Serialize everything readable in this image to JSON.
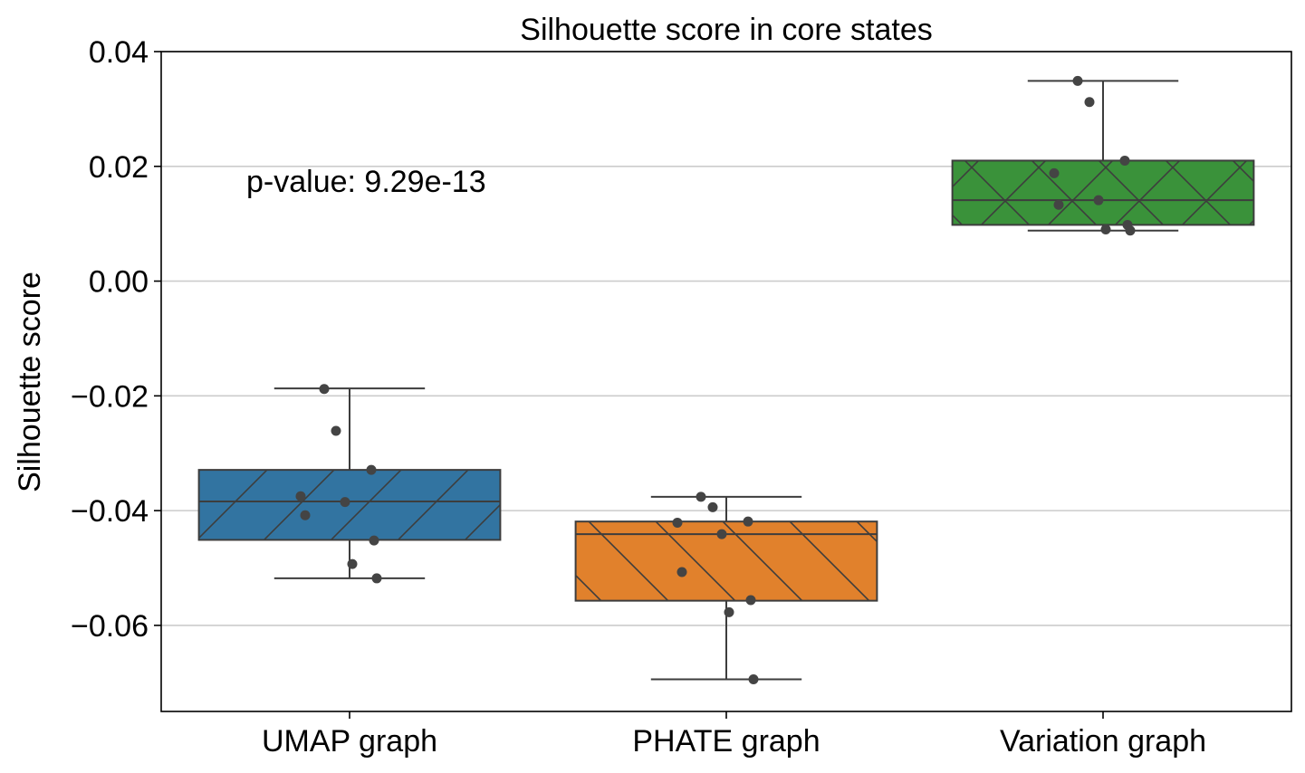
{
  "chart_data": {
    "type": "box",
    "title": "Silhouette score in core states",
    "xlabel": "",
    "ylabel": "Silhouette score",
    "ylim": [
      -0.075,
      0.04
    ],
    "yticks": [
      0.04,
      0.02,
      0.0,
      -0.02,
      -0.04,
      -0.06
    ],
    "ytick_labels": [
      "0.04",
      "0.02",
      "0.00",
      "−0.02",
      "−0.04",
      "−0.06"
    ],
    "grid": "horizontal",
    "annotation": "p-value: 9.29e-13",
    "categories": [
      "UMAP graph",
      "PHATE graph",
      "Variation graph"
    ],
    "boxes": [
      {
        "category": "UMAP graph",
        "color": "#3274a1",
        "hatch": "/",
        "whisker_low": -0.0518,
        "q1": -0.0451,
        "median": -0.0384,
        "q3": -0.0329,
        "whisker_high": -0.0187,
        "points": [
          -0.0188,
          -0.0261,
          -0.0329,
          -0.0375,
          -0.0385,
          -0.0408,
          -0.0452,
          -0.0493,
          -0.0518
        ]
      },
      {
        "category": "PHATE graph",
        "color": "#e1812c",
        "hatch": "\\",
        "whisker_low": -0.0694,
        "q1": -0.0557,
        "median": -0.0441,
        "q3": -0.0419,
        "whisker_high": -0.0376,
        "points": [
          -0.0376,
          -0.0394,
          -0.0419,
          -0.0421,
          -0.0441,
          -0.0507,
          -0.0556,
          -0.0577,
          -0.0694
        ]
      },
      {
        "category": "Variation graph",
        "color": "#3a923a",
        "hatch": "x",
        "whisker_low": 0.0088,
        "q1": 0.0098,
        "median": 0.0141,
        "q3": 0.021,
        "whisker_high": 0.0349,
        "points": [
          0.0349,
          0.0312,
          0.021,
          0.0188,
          0.0141,
          0.0133,
          0.0098,
          0.009,
          0.0088
        ]
      }
    ]
  }
}
